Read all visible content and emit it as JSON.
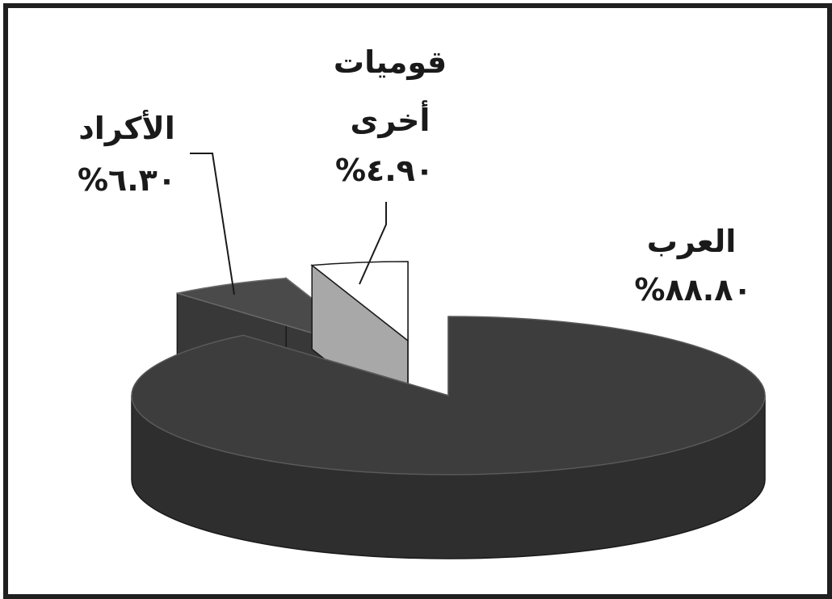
{
  "chart_data": {
    "type": "pie",
    "title": "",
    "slices": [
      {
        "label": "العرب",
        "value": 88.8,
        "value_label": "%٨٨.٨٠",
        "color": "#3d3d3d"
      },
      {
        "label": "الأكراد",
        "value": 6.3,
        "value_label": "%٦.٣٠",
        "color": "#4a4a4a"
      },
      {
        "label_lines": [
          "قوميات",
          "أخرى"
        ],
        "value": 4.9,
        "value_label": "%٤.٩٠",
        "color": "#ffffff"
      }
    ]
  }
}
